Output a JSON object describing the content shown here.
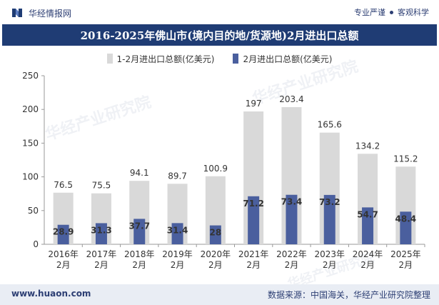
{
  "header": {
    "brand": "华经情报网",
    "motto_left": "专业严谨",
    "motto_right": "客观科学"
  },
  "footer": {
    "website": "www.huaon.com",
    "source": "数据来源：中国海关，华经产业研究院整理"
  },
  "watermark": {
    "text": "华经产业研究院",
    "url": "www.huaon.com"
  },
  "colors": {
    "title_bg": "#1f3c74",
    "series_total": "#d9d9d9",
    "series_month": "#4a5f9e",
    "footer_bg": "#e9edf4"
  },
  "chart_data": {
    "type": "bar",
    "title": "2016-2025年佛山市(境内目的地/货源地)2月进出口总额",
    "categories": [
      "2016年\n2月",
      "2017年\n2月",
      "2018年\n2月",
      "2019年\n2月",
      "2020年\n2月",
      "2021年\n2月",
      "2022年\n2月",
      "2023年\n2月",
      "2024年\n2月",
      "2025年\n2月"
    ],
    "series": [
      {
        "name": "1-2月进出口总额(亿美元)",
        "values": [
          76.5,
          75.5,
          94.1,
          89.7,
          100.9,
          197,
          203.4,
          165.6,
          134.2,
          115.2
        ]
      },
      {
        "name": "2月进出口总额(亿美元)",
        "values": [
          28.9,
          31.3,
          37.7,
          31.4,
          28,
          71.2,
          73.4,
          73.2,
          54.7,
          48.4
        ]
      }
    ],
    "ylim": [
      0,
      250
    ],
    "yticks": [
      0,
      50,
      100,
      150,
      200,
      250
    ],
    "xlabel": "",
    "ylabel": "",
    "grid": false,
    "legend": "top-center",
    "overlapped": true
  }
}
